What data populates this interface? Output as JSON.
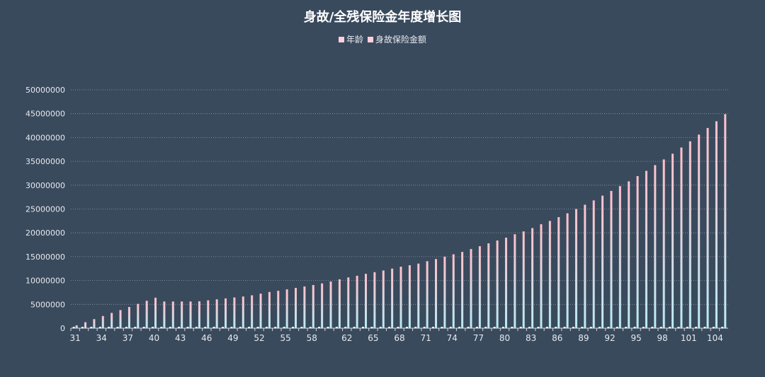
{
  "chart_data": {
    "type": "bar",
    "title": "身故/全残保险金年度增长图",
    "legend": [
      "年龄",
      "身故保险金额"
    ],
    "legend_position": "top-center",
    "series_colors": {
      "age_bar": "#ffffff",
      "amount_gradient_top": "#ffc0cb",
      "amount_gradient_bottom": "#b8ecf3"
    },
    "ylim": [
      0,
      50000000
    ],
    "y_ticks": [
      "0",
      "5000000",
      "10000000",
      "15000000",
      "20000000",
      "25000000",
      "30000000",
      "35000000",
      "40000000",
      "45000000",
      "50000000"
    ],
    "grid": "horizontal dotted",
    "categories": [
      31,
      32,
      33,
      34,
      35,
      36,
      37,
      38,
      39,
      40,
      41,
      42,
      43,
      44,
      45,
      46,
      47,
      48,
      49,
      50,
      51,
      52,
      53,
      54,
      55,
      56,
      57,
      58,
      59,
      60,
      61,
      62,
      63,
      64,
      65,
      66,
      67,
      68,
      69,
      70,
      71,
      72,
      73,
      74,
      75,
      76,
      77,
      78,
      79,
      80,
      81,
      82,
      83,
      84,
      85,
      86,
      87,
      88,
      89,
      90,
      91,
      92,
      93,
      94,
      95,
      96,
      97,
      98,
      99,
      100,
      101,
      102,
      103,
      104,
      105
    ],
    "x_tick_labels": [
      "31",
      "34",
      "37",
      "40",
      "43",
      "46",
      "49",
      "52",
      "55",
      "58",
      "62",
      "65",
      "68",
      "71",
      "74",
      "77",
      "80",
      "83",
      "86",
      "89",
      "92",
      "95",
      "98",
      "101",
      "104"
    ],
    "series": [
      {
        "name": "年龄",
        "values": [
          31,
          32,
          33,
          34,
          35,
          36,
          37,
          38,
          39,
          40,
          41,
          42,
          43,
          44,
          45,
          46,
          47,
          48,
          49,
          50,
          51,
          52,
          53,
          54,
          55,
          56,
          57,
          58,
          59,
          60,
          61,
          62,
          63,
          64,
          65,
          66,
          67,
          68,
          69,
          70,
          71,
          72,
          73,
          74,
          75,
          76,
          77,
          78,
          79,
          80,
          81,
          82,
          83,
          84,
          85,
          86,
          87,
          88,
          89,
          90,
          91,
          92,
          93,
          94,
          95,
          96,
          97,
          98,
          99,
          100,
          101,
          102,
          103,
          104,
          105
        ]
      },
      {
        "name": "身故保险金额",
        "values": [
          600000,
          1250000,
          1900000,
          2550000,
          3200000,
          3800000,
          4450000,
          5100000,
          5750000,
          6400000,
          5600000,
          5600000,
          5600000,
          5600000,
          5650000,
          5850000,
          6050000,
          6250000,
          6450000,
          6650000,
          6900000,
          7250000,
          7600000,
          7850000,
          8150000,
          8450000,
          8750000,
          9050000,
          9400000,
          9800000,
          10250000,
          10650000,
          11000000,
          11400000,
          11750000,
          12100000,
          12500000,
          12900000,
          13200000,
          13550000,
          14050000,
          14500000,
          15000000,
          15500000,
          16000000,
          16600000,
          17200000,
          17800000,
          18400000,
          19000000,
          19700000,
          20300000,
          21000000,
          21800000,
          22500000,
          23300000,
          24100000,
          25000000,
          25900000,
          26800000,
          27800000,
          28800000,
          29800000,
          30800000,
          31900000,
          33000000,
          34200000,
          35400000,
          36600000,
          37900000,
          39200000,
          40600000,
          42000000,
          43400000,
          44900000
        ]
      }
    ]
  }
}
